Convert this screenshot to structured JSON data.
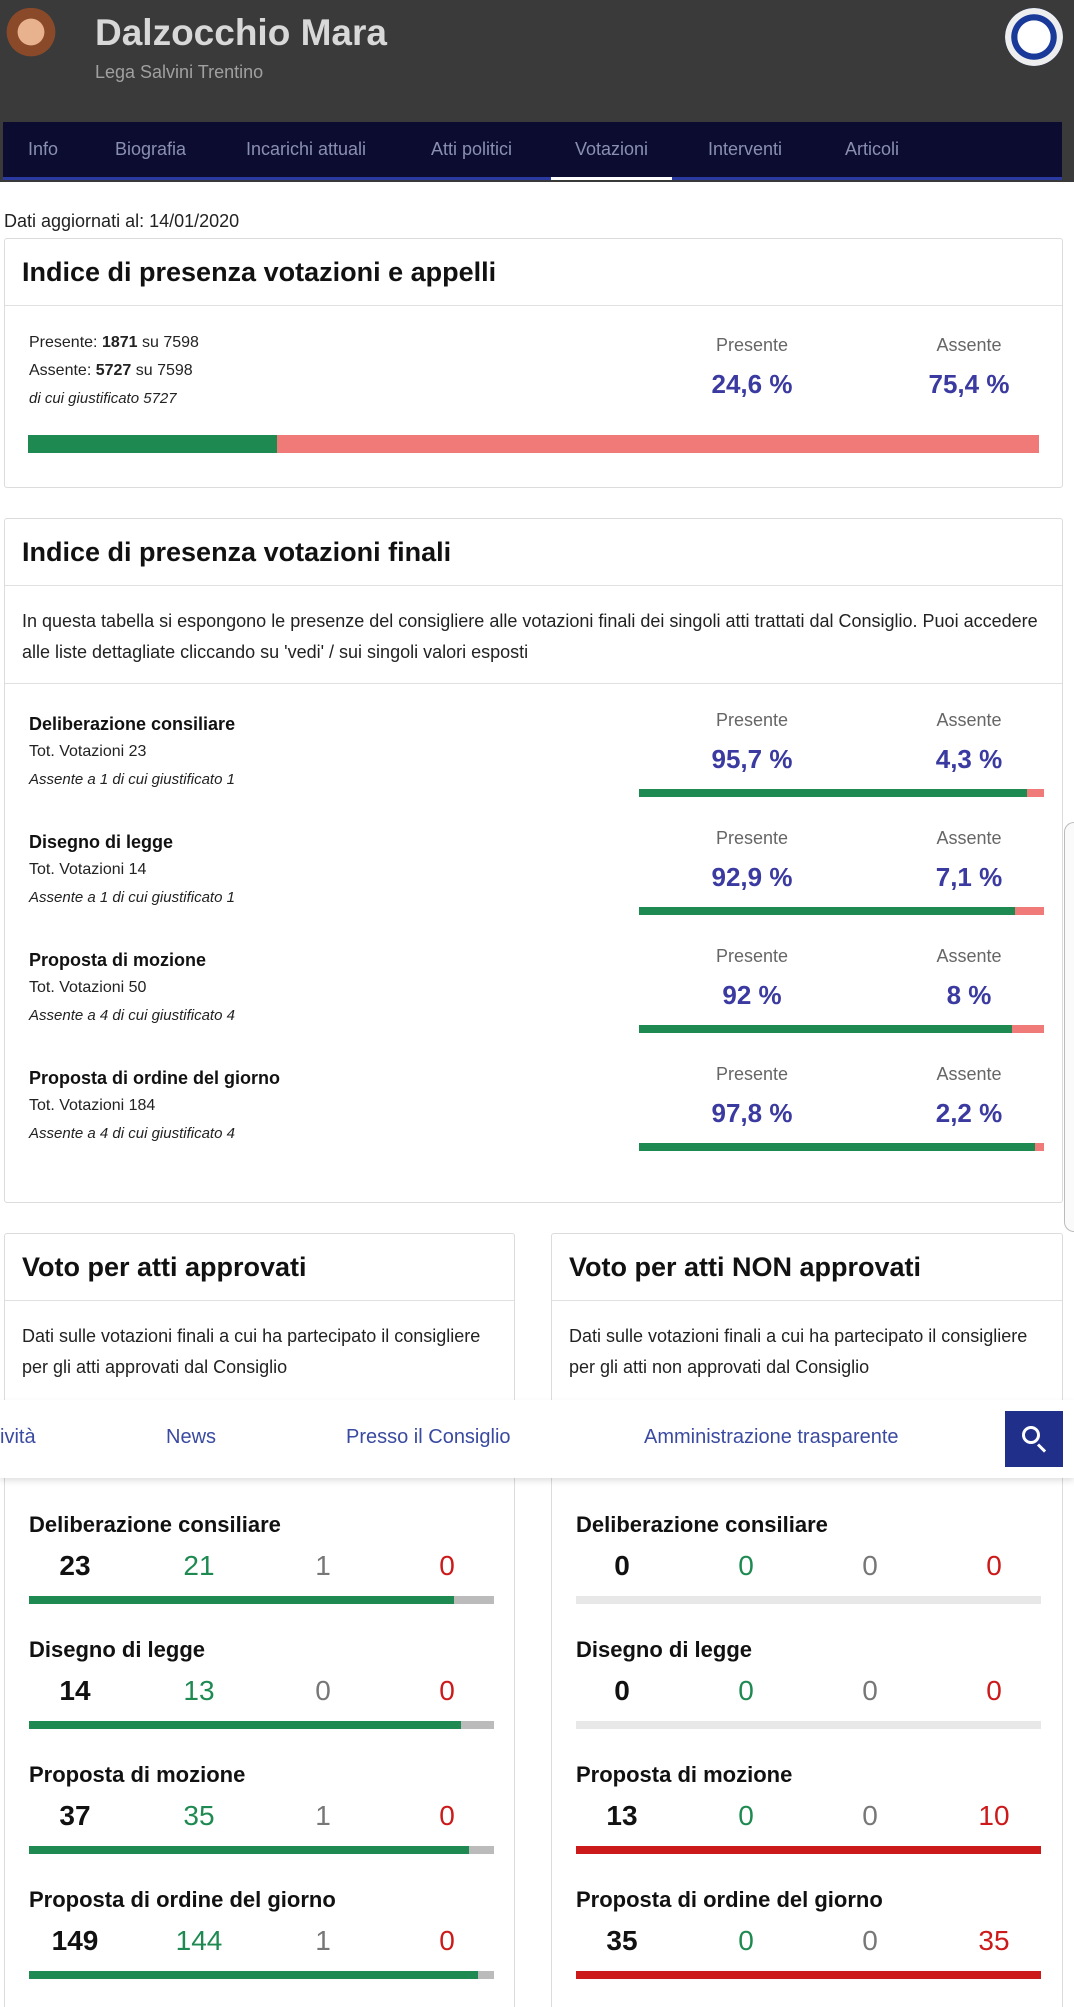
{
  "header": {
    "name": "Dalzocchio Mara",
    "party": "Lega Salvini Trentino",
    "nav": [
      "Info",
      "Biografia",
      "Incarichi attuali",
      "Atti politici",
      "Votazioni",
      "Interventi",
      "Articoli"
    ],
    "active_nav": "Votazioni"
  },
  "updated": "Dati aggiornati al: 14/01/2020",
  "presence": {
    "title": "Indice di presenza votazioni e appelli",
    "present_label": "Presente: ",
    "present_value": "1871",
    "present_of": " su 7598",
    "absent_label": "Assente: ",
    "absent_value": "5727",
    "absent_of": " su 7598",
    "justified": "di cui giustificato 5727",
    "presente_lbl": "Presente",
    "assente_lbl": "Assente",
    "presente_pct": "24,6 %",
    "assente_pct": "75,4 %",
    "present_fraction": 0.246
  },
  "finals": {
    "title": "Indice di presenza votazioni finali",
    "description": "In questa tabella si espongono le presenze del consigliere alle votazioni finali dei singoli atti trattati dal Consiglio. Puoi accedere alle liste dettagliate cliccando su 'vedi' / sui singoli valori esposti",
    "presente_lbl": "Presente",
    "assente_lbl": "Assente",
    "rows": [
      {
        "title": "Deliberazione consiliare",
        "tot": "Tot. Votazioni 23",
        "note": "Assente a 1 di cui giustificato 1",
        "present": "95,7 %",
        "absent": "4,3 %",
        "fraction": 0.957
      },
      {
        "title": "Disegno di legge",
        "tot": "Tot. Votazioni 14",
        "note": "Assente a 1 di cui giustificato 1",
        "present": "92,9 %",
        "absent": "7,1 %",
        "fraction": 0.929
      },
      {
        "title": "Proposta di mozione",
        "tot": "Tot. Votazioni 50",
        "note": "Assente a 4 di cui giustificato 4",
        "present": "92 %",
        "absent": "8 %",
        "fraction": 0.92
      },
      {
        "title": "Proposta di ordine del giorno",
        "tot": "Tot. Votazioni 184",
        "note": "Assente a 4 di cui giustificato 4",
        "present": "97,8 %",
        "absent": "2,2 %",
        "fraction": 0.978
      }
    ]
  },
  "approved": {
    "title": "Voto per atti approvati",
    "description": "Dati sulle votazioni finali a cui ha partecipato il consigliere per gli atti approvati dal Consiglio",
    "rows": [
      {
        "title": "Deliberazione consiliare",
        "total": "23",
        "yes": "21",
        "abstain": "1",
        "no": "0"
      },
      {
        "title": "Disegno di legge",
        "total": "14",
        "yes": "13",
        "abstain": "0",
        "no": "0"
      },
      {
        "title": "Proposta di mozione",
        "total": "37",
        "yes": "35",
        "abstain": "1",
        "no": "0"
      },
      {
        "title": "Proposta di ordine del giorno",
        "total": "149",
        "yes": "144",
        "abstain": "1",
        "no": "0"
      }
    ]
  },
  "not_approved": {
    "title": "Voto per atti NON approvati",
    "description": "Dati sulle votazioni finali a cui ha partecipato il consigliere per gli atti non approvati dal Consiglio",
    "rows": [
      {
        "title": "Deliberazione consiliare",
        "total": "0",
        "yes": "0",
        "abstain": "0",
        "no": "0"
      },
      {
        "title": "Disegno di legge",
        "total": "0",
        "yes": "0",
        "abstain": "0",
        "no": "0"
      },
      {
        "title": "Proposta di mozione",
        "total": "13",
        "yes": "0",
        "abstain": "0",
        "no": "10"
      },
      {
        "title": "Proposta di ordine del giorno",
        "total": "35",
        "yes": "0",
        "abstain": "0",
        "no": "35"
      }
    ]
  },
  "subnav": [
    "ività",
    "News",
    "Presso il Consiglio",
    "Amministrazione trasparente"
  ],
  "colors": {
    "present": "#1e8a52",
    "absent": "#f07a78",
    "accent": "#3a3aa0",
    "no": "#cc1a1a"
  }
}
